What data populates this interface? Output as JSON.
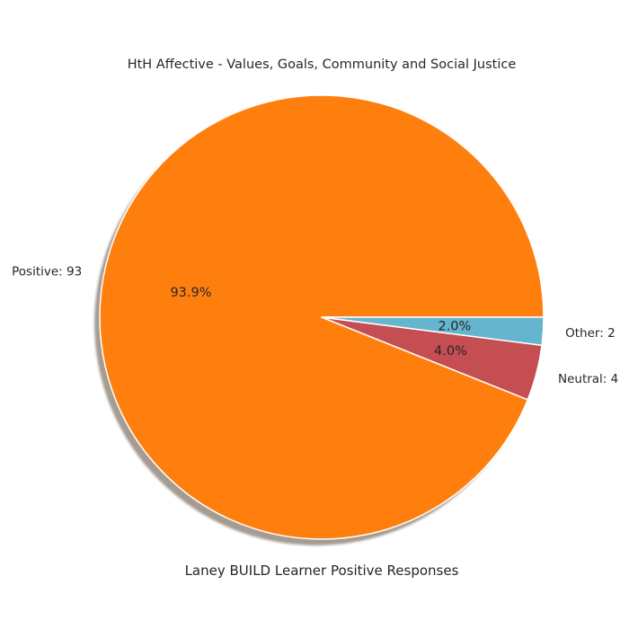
{
  "chart_data": {
    "type": "pie",
    "title": "HtH Affective - Values, Goals, Community and Social Justice",
    "xlabel": "Laney BUILD Learner Positive Responses",
    "slices": [
      {
        "label": "Positive: 93",
        "value": 93,
        "percent_label": "93.9%",
        "color": "#ff7f0e"
      },
      {
        "label": "Neutral: 4",
        "value": 4,
        "percent_label": "4.0%",
        "color": "#c44e52"
      },
      {
        "label": "Other: 2",
        "value": 2,
        "percent_label": "2.0%",
        "color": "#64b5cd"
      }
    ],
    "shadow": true,
    "edge_color": "#ffffff"
  }
}
